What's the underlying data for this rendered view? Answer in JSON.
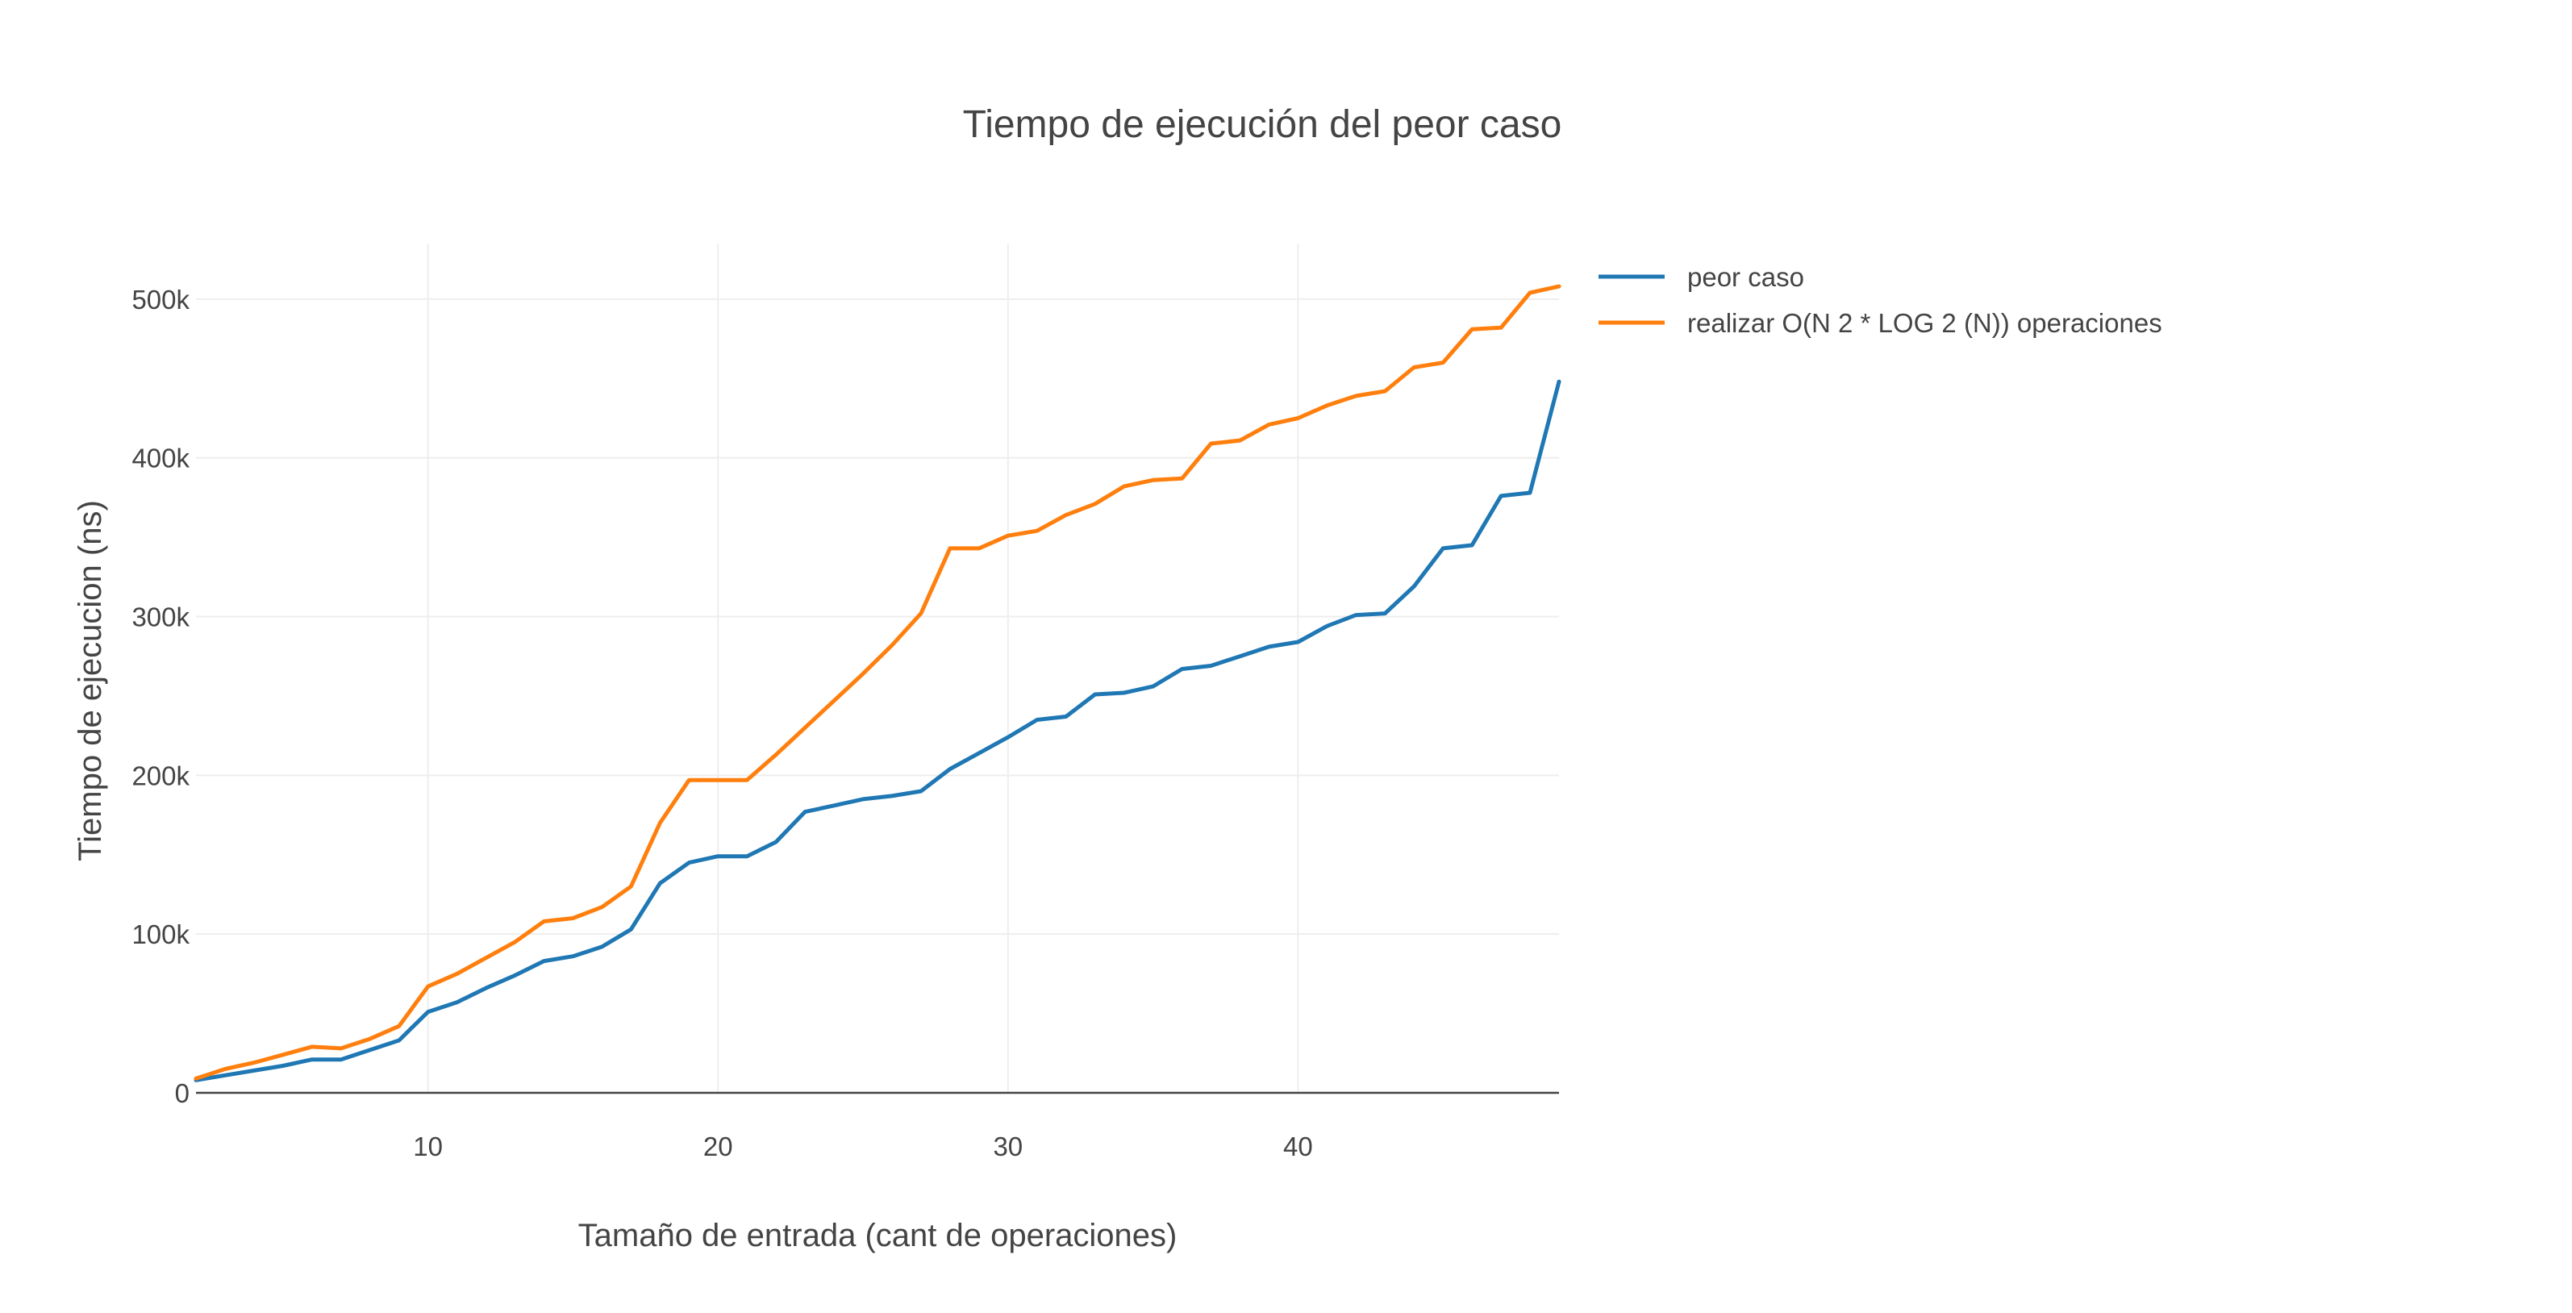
{
  "chart_data": {
    "type": "line",
    "title": "Tiempo de ejecución del peor caso",
    "xlabel": "Tamaño de entrada (cant de operaciones)",
    "ylabel": "Tiempo de ejecucion (ns)",
    "xlim": [
      2,
      49
    ],
    "ylim": [
      0,
      535000
    ],
    "x_ticks": [
      10,
      20,
      30,
      40
    ],
    "x_tick_labels": [
      "10",
      "20",
      "30",
      "40"
    ],
    "y_ticks": [
      0,
      100000,
      200000,
      300000,
      400000,
      500000
    ],
    "y_tick_labels": [
      "0",
      "100k",
      "200k",
      "300k",
      "400k",
      "500k"
    ],
    "grid": true,
    "legend_position": "top-right, outside plot",
    "x": [
      2,
      3,
      4,
      5,
      6,
      7,
      8,
      9,
      10,
      11,
      12,
      13,
      14,
      15,
      16,
      17,
      18,
      19,
      20,
      21,
      22,
      23,
      24,
      25,
      26,
      27,
      28,
      29,
      30,
      31,
      32,
      33,
      34,
      35,
      36,
      37,
      38,
      39,
      40,
      41,
      42,
      43,
      44,
      45,
      46,
      47,
      48,
      49
    ],
    "series": [
      {
        "name": "peor caso",
        "color": "#1f77b4",
        "values": [
          8000,
          11000,
          14000,
          17000,
          21000,
          21000,
          27000,
          33000,
          51000,
          57000,
          66000,
          74000,
          83000,
          86000,
          92000,
          103000,
          132000,
          145000,
          149000,
          149000,
          158000,
          177000,
          181000,
          185000,
          187000,
          190000,
          204000,
          214000,
          224000,
          235000,
          237000,
          251000,
          252000,
          256000,
          267000,
          269000,
          275000,
          281000,
          284000,
          294000,
          301000,
          302000,
          319000,
          343000,
          345000,
          376000,
          378000,
          448000
        ]
      },
      {
        "name": "realizar O(N 2 * LOG 2 (N)) operaciones",
        "color": "#ff7f0e",
        "values": [
          9000,
          15000,
          19000,
          24000,
          29000,
          28000,
          34000,
          42000,
          67000,
          75000,
          85000,
          95000,
          108000,
          110000,
          117000,
          130000,
          170000,
          197000,
          197000,
          197000,
          213000,
          230000,
          247000,
          264000,
          282000,
          302000,
          343000,
          343000,
          351000,
          354000,
          364000,
          371000,
          382000,
          386000,
          387000,
          409000,
          411000,
          421000,
          425000,
          433000,
          439000,
          442000,
          457000,
          460000,
          481000,
          482000,
          504000,
          508000
        ]
      }
    ]
  }
}
